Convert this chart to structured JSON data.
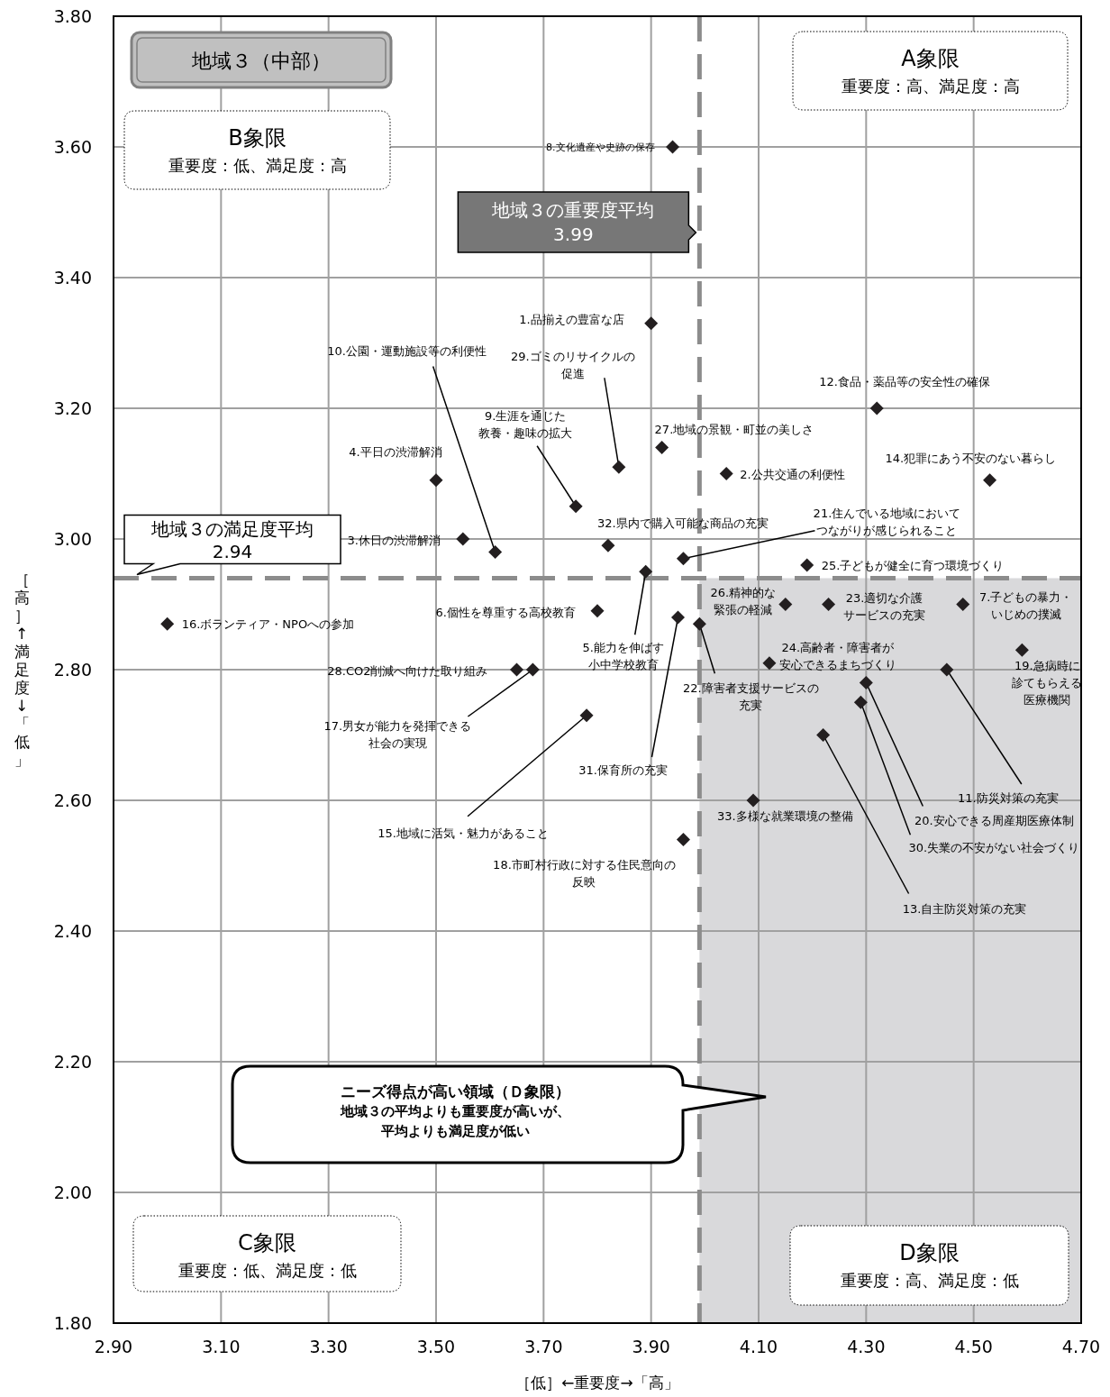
{
  "chart_data": {
    "type": "scatter",
    "title": "地域３（中部）",
    "xlabel": "［低］←重要度→「高」",
    "ylabel": "［高］↑満足度↓「低」",
    "xlim": [
      2.9,
      4.7
    ],
    "ylim": [
      1.8,
      3.8
    ],
    "xticks": [
      {
        "value": 2.9,
        "label": "2.90"
      },
      {
        "value": 3.1,
        "label": "3.10"
      },
      {
        "value": 3.3,
        "label": "3.30"
      },
      {
        "value": 3.5,
        "label": "3.50"
      },
      {
        "value": 3.7,
        "label": "3.70"
      },
      {
        "value": 3.9,
        "label": "3.90"
      },
      {
        "value": 4.1,
        "label": "4.10"
      },
      {
        "value": 4.3,
        "label": "4.30"
      },
      {
        "value": 4.5,
        "label": "4.50"
      },
      {
        "value": 4.7,
        "label": "4.70"
      }
    ],
    "yticks": [
      {
        "value": 1.8,
        "label": "1.80"
      },
      {
        "value": 2.0,
        "label": "2.00"
      },
      {
        "value": 2.2,
        "label": "2.20"
      },
      {
        "value": 2.4,
        "label": "2.40"
      },
      {
        "value": 2.6,
        "label": "2.60"
      },
      {
        "value": 2.8,
        "label": "2.80"
      },
      {
        "value": 3.0,
        "label": "3.00"
      },
      {
        "value": 3.2,
        "label": "3.20"
      },
      {
        "value": 3.4,
        "label": "3.40"
      },
      {
        "value": 3.6,
        "label": "3.60"
      },
      {
        "value": 3.8,
        "label": "3.80"
      }
    ],
    "grid": true,
    "legend": false,
    "marker": "diamond",
    "ref_lines": [
      {
        "axis": "x",
        "value": 3.99,
        "label": "地域３の重要度平均\n3.99",
        "color": "#8c8c8c",
        "line_style": "dashed"
      },
      {
        "axis": "y",
        "value": 2.94,
        "label": "地域３の満足度平均\n2.94",
        "color": "#8c8c8c",
        "line_style": "dashed"
      }
    ],
    "annotations": [
      "A象限",
      "重要度：高、満足度：高",
      "B象限",
      "重要度：低、満足度：高",
      "C象限",
      "重要度：低、満足度：低",
      "D象限",
      "重要度：高、満足度：低",
      "ニーズ得点が高い領域（Ｄ象限）",
      "地域３の平均よりも重要度が高いが、",
      "平均よりも満足度が低い"
    ],
    "series": [
      {
        "name": "1.品揃えの豊富な店",
        "color": "#231f20",
        "x": [
          3.9
        ],
        "values": [
          3.33
        ]
      },
      {
        "name": "2.公共交通の利便性",
        "color": "#231f20",
        "x": [
          4.04
        ],
        "values": [
          3.1
        ]
      },
      {
        "name": "3.休日の渋滞解消",
        "color": "#231f20",
        "x": [
          3.55
        ],
        "values": [
          3.0
        ]
      },
      {
        "name": "4.平日の渋滞解消",
        "color": "#231f20",
        "x": [
          3.5
        ],
        "values": [
          3.09
        ]
      },
      {
        "name": "5.能力を伸ばす小中学校教育",
        "color": "#231f20",
        "x": [
          3.89
        ],
        "values": [
          2.95
        ]
      },
      {
        "name": "6.個性を尊重する高校教育",
        "color": "#231f20",
        "x": [
          3.8
        ],
        "values": [
          2.89
        ]
      },
      {
        "name": "7.子どもの暴力・いじめの撲滅",
        "color": "#231f20",
        "x": [
          4.48
        ],
        "values": [
          2.9
        ]
      },
      {
        "name": "8.文化遺産や史跡の保存",
        "color": "#231f20",
        "x": [
          3.94
        ],
        "values": [
          3.6
        ]
      },
      {
        "name": "9.生涯を通じた教養・趣味の拡大",
        "color": "#231f20",
        "x": [
          3.76
        ],
        "values": [
          3.05
        ]
      },
      {
        "name": "10.公園・運動施設等の利便性",
        "color": "#231f20",
        "x": [
          3.61
        ],
        "values": [
          2.98
        ]
      },
      {
        "name": "11.防災対策の充実",
        "color": "#231f20",
        "x": [
          4.45
        ],
        "values": [
          2.8
        ]
      },
      {
        "name": "12.食品・薬品等の安全性の確保",
        "color": "#231f20",
        "x": [
          4.32
        ],
        "values": [
          3.2
        ]
      },
      {
        "name": "13.自主防災対策の充実",
        "color": "#231f20",
        "x": [
          4.22
        ],
        "values": [
          2.7
        ]
      },
      {
        "name": "14.犯罪にあう不安のない暮らし",
        "color": "#231f20",
        "x": [
          4.53
        ],
        "values": [
          3.09
        ]
      },
      {
        "name": "15.地域に活気・魅力があること",
        "color": "#231f20",
        "x": [
          3.78
        ],
        "values": [
          2.73
        ]
      },
      {
        "name": "16.ボランティア・NPOへの参加",
        "color": "#231f20",
        "x": [
          3.0
        ],
        "values": [
          2.87
        ]
      },
      {
        "name": "17.男女が能力を発揮できる社会の実現",
        "color": "#231f20",
        "x": [
          3.68
        ],
        "values": [
          2.8
        ]
      },
      {
        "name": "18.市町村行政に対する住民意向の反映",
        "color": "#231f20",
        "x": [
          3.96
        ],
        "values": [
          2.54
        ]
      },
      {
        "name": "19.急病時に診てもらえる医療機関",
        "color": "#231f20",
        "x": [
          4.59
        ],
        "values": [
          2.83
        ]
      },
      {
        "name": "20.安心できる周産期医療体制",
        "color": "#231f20",
        "x": [
          4.3
        ],
        "values": [
          2.78
        ]
      },
      {
        "name": "21.住んでいる地域においてつながりが感じられること",
        "color": "#231f20",
        "x": [
          3.96
        ],
        "values": [
          2.97
        ]
      },
      {
        "name": "22.障害者支援サービスの充実",
        "color": "#231f20",
        "x": [
          3.99
        ],
        "values": [
          2.87
        ]
      },
      {
        "name": "23.適切な介護サービスの充実",
        "color": "#231f20",
        "x": [
          4.23
        ],
        "values": [
          2.9
        ]
      },
      {
        "name": "24.高齢者・障害者が安心できるまちづくり",
        "color": "#231f20",
        "x": [
          4.12
        ],
        "values": [
          2.81
        ]
      },
      {
        "name": "25.子どもが健全に育つ環境づくり",
        "color": "#231f20",
        "x": [
          4.19
        ],
        "values": [
          2.96
        ]
      },
      {
        "name": "26.精神的な緊張の軽減",
        "color": "#231f20",
        "x": [
          4.15
        ],
        "values": [
          2.9
        ]
      },
      {
        "name": "27.地域の景観・町並の美しさ",
        "color": "#231f20",
        "x": [
          3.92
        ],
        "values": [
          3.14
        ]
      },
      {
        "name": "28.CO2削減へ向けた取り組み",
        "color": "#231f20",
        "x": [
          3.65
        ],
        "values": [
          2.8
        ]
      },
      {
        "name": "29.ゴミのリサイクルの促進",
        "color": "#231f20",
        "x": [
          3.84
        ],
        "values": [
          3.11
        ]
      },
      {
        "name": "30.失業の不安がない社会づくり",
        "color": "#231f20",
        "x": [
          4.29
        ],
        "values": [
          2.75
        ]
      },
      {
        "name": "31.保育所の充実",
        "color": "#231f20",
        "x": [
          3.95
        ],
        "values": [
          2.88
        ]
      },
      {
        "name": "32.県内で購入可能な商品の充実",
        "color": "#231f20",
        "x": [
          3.82
        ],
        "values": [
          2.99
        ]
      },
      {
        "name": "33.多様な就業環境の整備",
        "color": "#231f20",
        "x": [
          4.09
        ],
        "values": [
          2.6
        ]
      }
    ]
  }
}
